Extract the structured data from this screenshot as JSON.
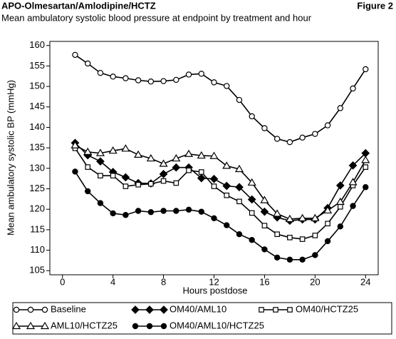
{
  "chart_data": {
    "type": "line",
    "title": "APO-Olmesartan/Amlodipine/HCTZ",
    "figure_label": "Figure 2",
    "subtitle": "Mean ambulatory systolic blood pressure at endpoint by treatment and hour",
    "x_label": "Hours postdose",
    "y_label": "Mean ambulatory systolic BP (mmHg)",
    "x": [
      1,
      2,
      3,
      4,
      5,
      6,
      7,
      8,
      9,
      10,
      11,
      12,
      13,
      14,
      15,
      16,
      17,
      18,
      19,
      20,
      21,
      22,
      23,
      24
    ],
    "xlim": [
      -1,
      25
    ],
    "xticks": [
      0,
      4,
      8,
      12,
      16,
      20,
      24
    ],
    "ylim": [
      104,
      161
    ],
    "yticks": [
      105,
      110,
      115,
      120,
      125,
      130,
      135,
      140,
      145,
      150,
      155,
      160
    ],
    "grid": false,
    "series": [
      {
        "name": "Baseline",
        "color": "#000000",
        "marker": "circle",
        "filled": false,
        "values": [
          157.7,
          155.6,
          153.3,
          152.4,
          152.0,
          151.5,
          151.2,
          151.3,
          151.6,
          152.9,
          153.1,
          151.0,
          150.1,
          146.7,
          142.7,
          139.8,
          137.2,
          136.4,
          137.5,
          138.4,
          140.5,
          144.7,
          149.5,
          154.2
        ]
      },
      {
        "name": "OM40/AML10",
        "color": "#000000",
        "marker": "diamond",
        "filled": true,
        "values": [
          136.2,
          133.2,
          131.7,
          129.1,
          127.8,
          126.4,
          126.3,
          128.6,
          130.2,
          130.2,
          127.6,
          127.4,
          125.7,
          125.4,
          122.4,
          119.4,
          118.0,
          117.2,
          117.5,
          117.5,
          120.3,
          125.8,
          130.7,
          133.7
        ]
      },
      {
        "name": "OM40/HCTZ25",
        "color": "#000000",
        "marker": "square",
        "filled": false,
        "values": [
          134.9,
          130.3,
          128.2,
          128.2,
          125.6,
          126.0,
          126.2,
          126.9,
          126.4,
          129.5,
          129.1,
          125.6,
          123.4,
          121.9,
          119.1,
          116.0,
          113.9,
          113.1,
          112.7,
          113.6,
          116.5,
          120.6,
          125.8,
          130.3
        ]
      },
      {
        "name": "AML10/HCTZ25",
        "color": "#000000",
        "marker": "triangle",
        "filled": false,
        "values": [
          135.6,
          134.0,
          133.7,
          134.3,
          134.8,
          133.3,
          132.4,
          131.1,
          132.4,
          133.5,
          133.1,
          133.0,
          130.6,
          129.8,
          126.5,
          122.2,
          118.9,
          117.6,
          117.8,
          117.8,
          119.7,
          121.8,
          126.6,
          132.0
        ]
      },
      {
        "name": "OM40/AML10/HCTZ25",
        "color": "#000000",
        "marker": "circle",
        "filled": true,
        "values": [
          129.2,
          124.4,
          121.5,
          119.0,
          118.6,
          119.6,
          119.3,
          119.6,
          119.6,
          119.9,
          119.4,
          117.8,
          116.1,
          113.9,
          112.5,
          110.2,
          108.2,
          107.7,
          107.7,
          108.8,
          112.2,
          115.8,
          120.8,
          125.4
        ]
      }
    ]
  }
}
